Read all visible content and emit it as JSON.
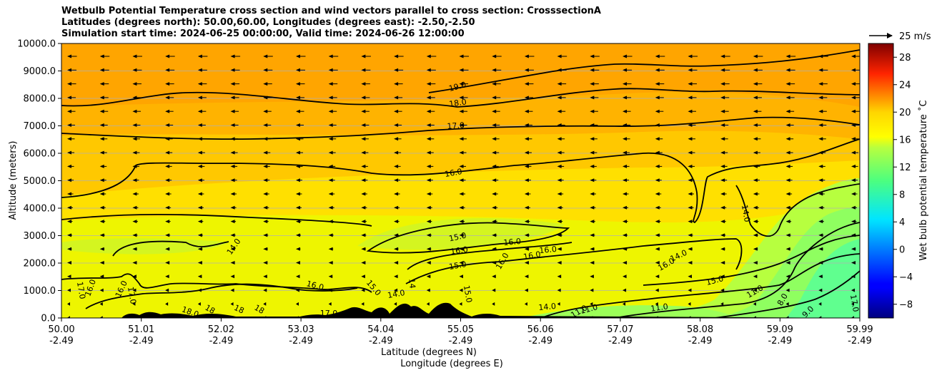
{
  "title_lines": [
    "Wetbulb Potential Temperature cross section and wind vectors parallel to cross section: CrosssectionA",
    "Latitudes (degrees north): 50.00,60.00, Longitudes (degrees east): -2.50,-2.50",
    "Simulation start time: 2024-06-25 00:00:00, Valid time: 2024-06-26 12:00:00"
  ],
  "chart_data": {
    "type": "heatmap",
    "ylabel": "Altitude (meters)",
    "xlabel_lines": [
      "Latitude (degrees N)",
      "Longitude (degrees E)"
    ],
    "ylim": [
      0,
      10000
    ],
    "yticks": [
      "0.0",
      "1000.0",
      "2000.0",
      "3000.0",
      "4000.0",
      "5000.0",
      "6000.0",
      "7000.0",
      "8000.0",
      "9000.0",
      "10000.0"
    ],
    "xticks": [
      {
        "lat": "50.00",
        "lon": "-2.49"
      },
      {
        "lat": "51.01",
        "lon": "-2.49"
      },
      {
        "lat": "52.02",
        "lon": "-2.49"
      },
      {
        "lat": "53.03",
        "lon": "-2.49"
      },
      {
        "lat": "54.04",
        "lon": "-2.49"
      },
      {
        "lat": "55.05",
        "lon": "-2.49"
      },
      {
        "lat": "56.06",
        "lon": "-2.49"
      },
      {
        "lat": "57.07",
        "lon": "-2.49"
      },
      {
        "lat": "58.08",
        "lon": "-2.49"
      },
      {
        "lat": "59.09",
        "lon": "-2.49"
      },
      {
        "lat": "59.99",
        "lon": "-2.49"
      }
    ],
    "grid": "horizontal",
    "colorbar": {
      "label": "Wet bulb potential temperature ˚C",
      "min": -10,
      "max": 30,
      "ticks": [
        "−8",
        "−4",
        "0",
        "4",
        "8",
        "12",
        "16",
        "20",
        "24",
        "28"
      ],
      "colormap": "jet"
    },
    "wind_reference": {
      "label": "25 m/s"
    },
    "wind_direction": "westward (toward lower latitude)",
    "contour_labels": [
      "19.0",
      "18.0",
      "17.0",
      "16.0",
      "16.0",
      "14.0",
      "15.0",
      "16.0",
      "15.0",
      "16.0",
      "16.0",
      "16.0",
      "14.0",
      "14.0",
      "15.0",
      "11.0",
      "11.0",
      "8.0",
      "9.0",
      "17.0",
      "16.0",
      "17.0",
      "18.0",
      "18",
      "18",
      "18",
      "17.0",
      "16.0",
      "15.0",
      "14",
      "15.0",
      "14.0",
      "11.0",
      "11.0",
      "17.0",
      "16.0",
      "16.0",
      "14.0"
    ],
    "colors": {
      "terrain": "#000000",
      "contour": "#000000",
      "grid": "#b0b0b0"
    }
  }
}
